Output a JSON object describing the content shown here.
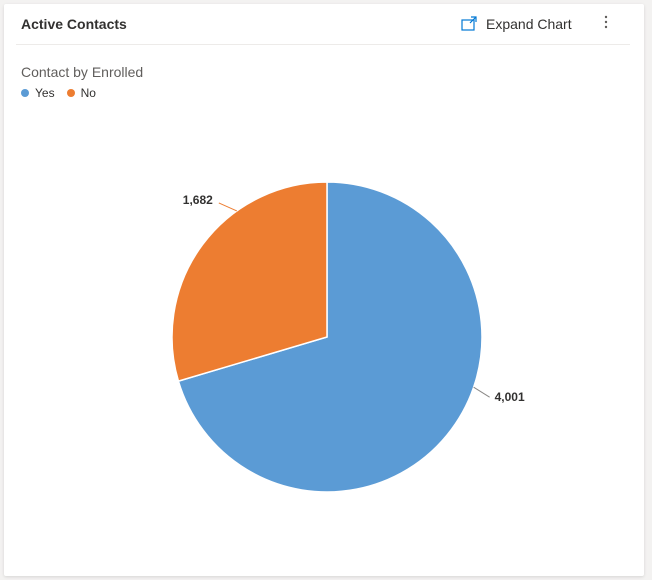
{
  "header": {
    "title": "Active Contacts",
    "expand_label": "Expand Chart",
    "expand_icon": "expand-icon",
    "more_icon": "more-vertical-icon"
  },
  "chart_data": {
    "type": "pie",
    "title": "Contact by Enrolled",
    "categories": [
      "Yes",
      "No"
    ],
    "values": [
      4001,
      1682
    ],
    "labels": [
      "4,001",
      "1,682"
    ],
    "colors": [
      "#5b9bd5",
      "#ed7d31"
    ],
    "legend": "top-left"
  }
}
